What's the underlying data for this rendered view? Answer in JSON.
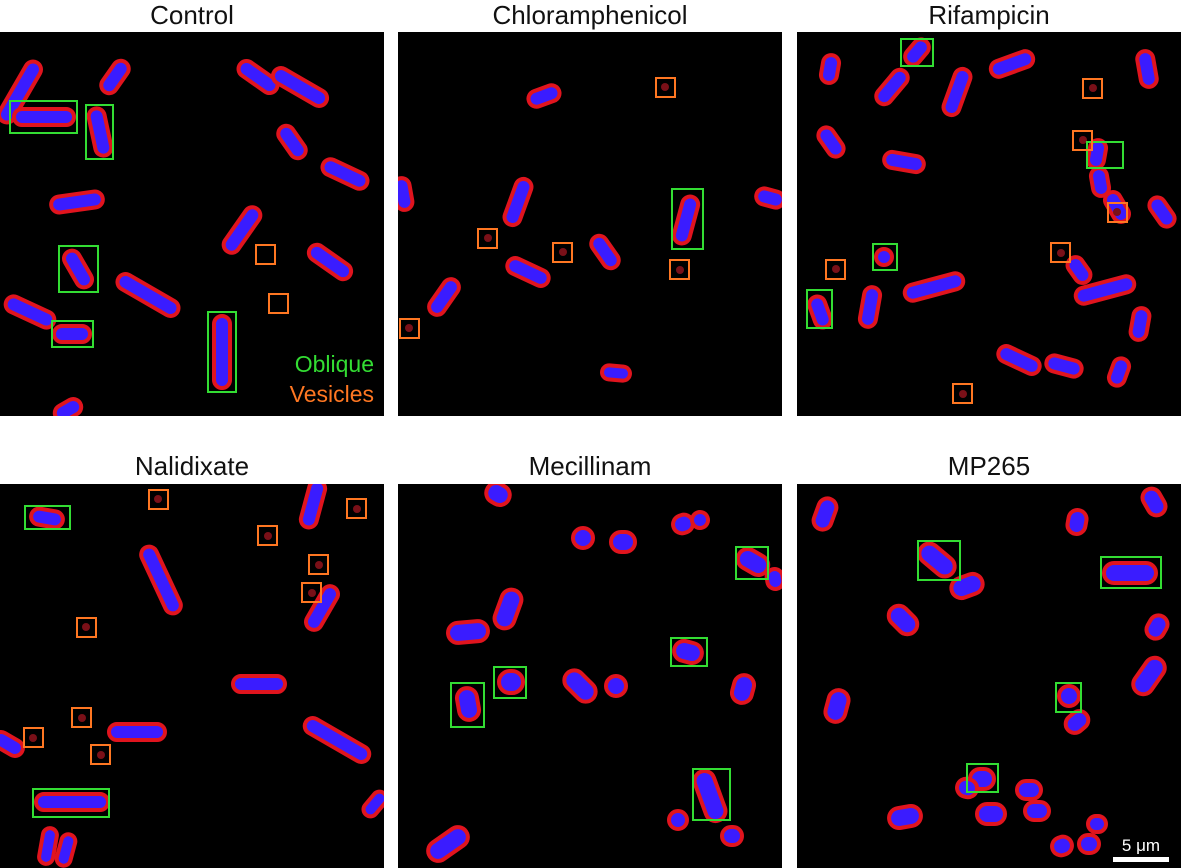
{
  "panels": [
    {
      "title": "Control"
    },
    {
      "title": "Chloramphenicol"
    },
    {
      "title": "Rifampicin"
    },
    {
      "title": "Nalidixate"
    },
    {
      "title": "Mecillinam"
    },
    {
      "title": "MP265"
    }
  ],
  "legend": {
    "oblique": "Oblique",
    "vesicles": "Vesicles",
    "oblique_color": "#33dd33",
    "vesicles_color": "#ff7722"
  },
  "scale_bar": {
    "label": "5 μm"
  }
}
